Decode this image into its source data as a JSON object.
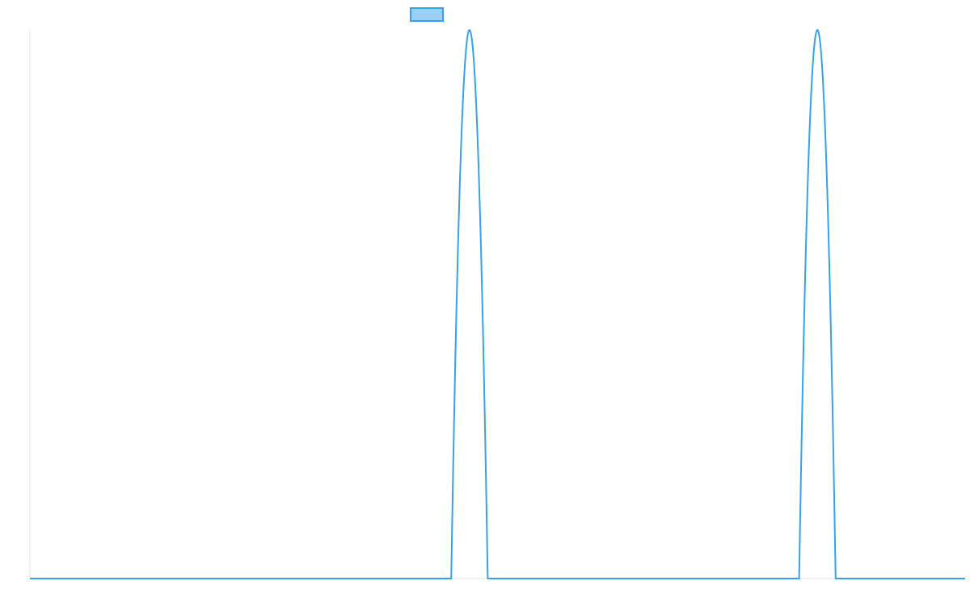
{
  "chart_data": {
    "type": "line",
    "title": "",
    "xlabel": "",
    "ylabel": "",
    "xlim": [
      0,
      1000
    ],
    "ylim": [
      0,
      1
    ],
    "grid": false,
    "legend": {
      "placement": "top-center",
      "label": ""
    },
    "colors": {
      "line": "#36a2eb",
      "fill": "#9ad0f5",
      "axis": "#e5e5e5"
    },
    "series": [
      {
        "peaks": [
          {
            "center": 470,
            "half_width": 19.5,
            "height": 1
          },
          {
            "center": 842,
            "half_width": 19.5,
            "height": 1
          }
        ]
      }
    ]
  }
}
